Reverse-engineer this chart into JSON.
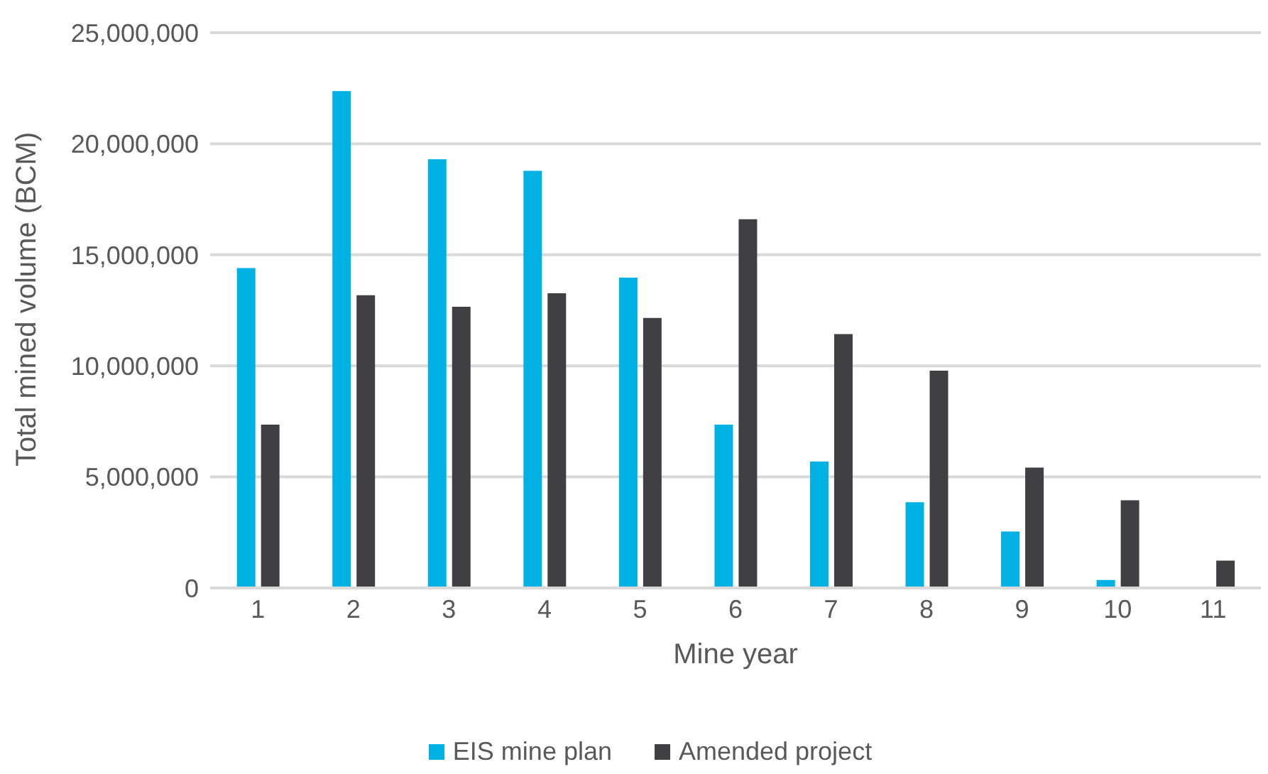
{
  "chart_data": {
    "type": "bar",
    "xlabel": "Mine year",
    "ylabel": "Total mined volume (BCM)",
    "categories": [
      "1",
      "2",
      "3",
      "4",
      "5",
      "6",
      "7",
      "8",
      "9",
      "10",
      "11"
    ],
    "series": [
      {
        "name": "EIS mine plan",
        "color": "#00b2e3",
        "values": [
          14400000,
          22370000,
          19300000,
          18780000,
          13970000,
          7350000,
          5690000,
          3860000,
          2540000,
          360000,
          0
        ]
      },
      {
        "name": "Amended project",
        "color": "#404042",
        "values": [
          7350000,
          13180000,
          12660000,
          13270000,
          12160000,
          16600000,
          11430000,
          9780000,
          5420000,
          3950000,
          1230000
        ]
      }
    ],
    "ylim": [
      0,
      25000000
    ],
    "yticks": [
      0,
      {
        "value": 5000000,
        "label": "5,000,000"
      },
      {
        "value": 10000000,
        "label": "10,000,000"
      },
      {
        "value": 15000000,
        "label": "15,000,000"
      },
      {
        "value": 20000000,
        "label": "20,000,000"
      },
      {
        "value": 25000000,
        "label": "25,000,000"
      }
    ],
    "grid": "y",
    "legend": "bottom"
  }
}
